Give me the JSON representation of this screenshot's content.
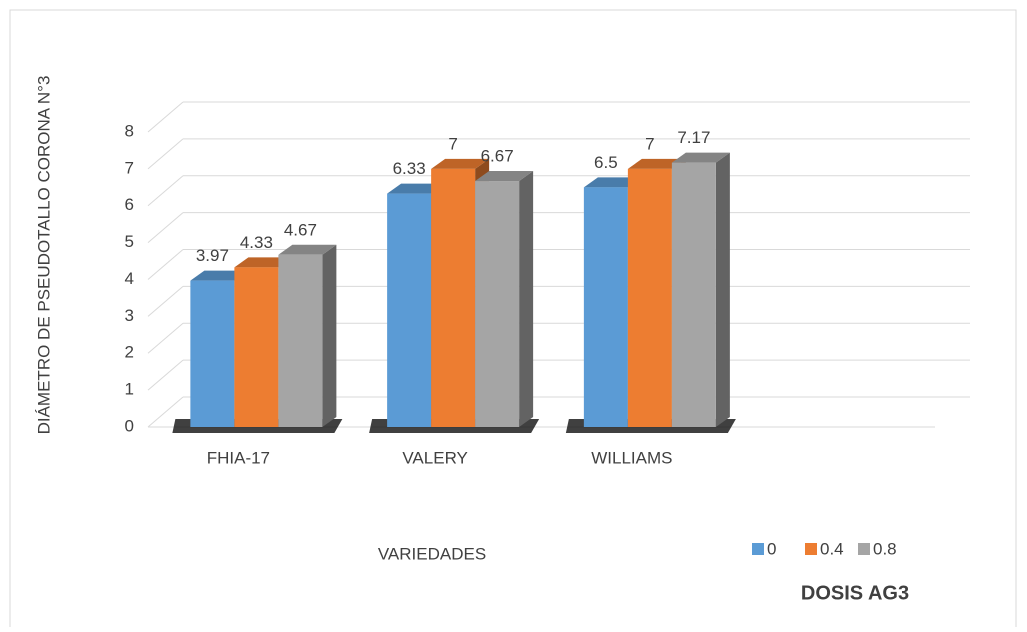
{
  "chart_data": {
    "type": "bar3d",
    "y_label": "DIÁMETRO DE PSEUDOTALLO CORONA N°3",
    "x_label": "VARIEDADES",
    "legend_title": "DOSIS AG3",
    "categories": [
      "FHIA-17",
      "VALERY",
      "WILLIAMS"
    ],
    "series": [
      {
        "name": "0",
        "color": "#5b9bd5",
        "values": [
          3.97,
          6.33,
          6.5
        ]
      },
      {
        "name": "0.4",
        "color": "#ed7d31",
        "values": [
          4.33,
          7,
          7
        ]
      },
      {
        "name": "0.8",
        "color": "#a5a5a5",
        "values": [
          4.67,
          6.67,
          7.17
        ]
      }
    ],
    "ylim": [
      0,
      8
    ],
    "yticks": [
      0,
      1,
      2,
      3,
      4,
      5,
      6,
      7,
      8
    ],
    "grid": true,
    "legend": "bottom-right"
  }
}
